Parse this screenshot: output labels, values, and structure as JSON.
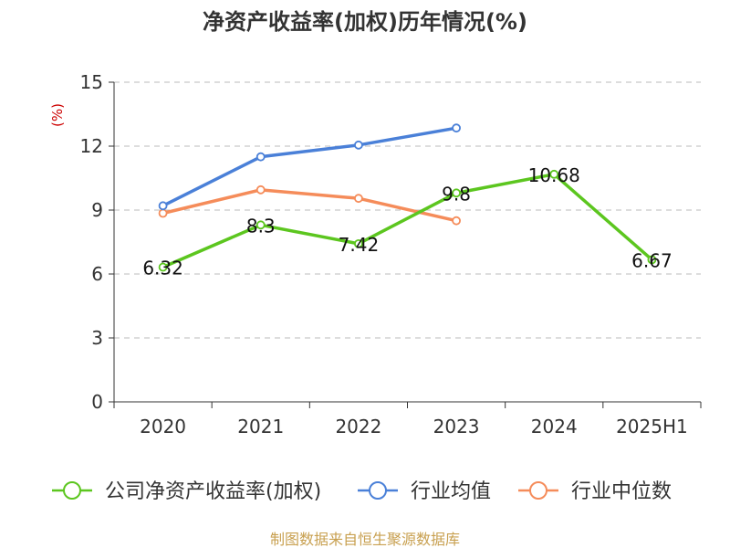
{
  "chart_data": {
    "type": "line",
    "title": "净资产收益率(加权)历年情况(%)",
    "ylabel": "(%)",
    "xlabel": "",
    "categories": [
      "2020",
      "2021",
      "2022",
      "2023",
      "2024",
      "2025H1"
    ],
    "ylim": [
      0,
      15
    ],
    "yticks": [
      0,
      3,
      6,
      9,
      12,
      15
    ],
    "grid": "horizontal-dashed",
    "legend_position": "bottom",
    "series": [
      {
        "name": "公司净资产收益率(加权)",
        "color": "#5cc61f",
        "values": [
          6.32,
          8.3,
          7.42,
          9.8,
          10.68,
          6.67
        ],
        "labels": [
          "6.32",
          "8.3",
          "7.42",
          "9.8",
          "10.68",
          "6.67"
        ]
      },
      {
        "name": "行业均值",
        "color": "#4a80d8",
        "values": [
          9.2,
          11.5,
          12.05,
          12.85,
          null,
          null
        ]
      },
      {
        "name": "行业中位数",
        "color": "#f58c5a",
        "values": [
          8.85,
          9.95,
          9.55,
          8.5,
          null,
          null
        ]
      }
    ],
    "source": "制图数据来自恒生聚源数据库"
  }
}
